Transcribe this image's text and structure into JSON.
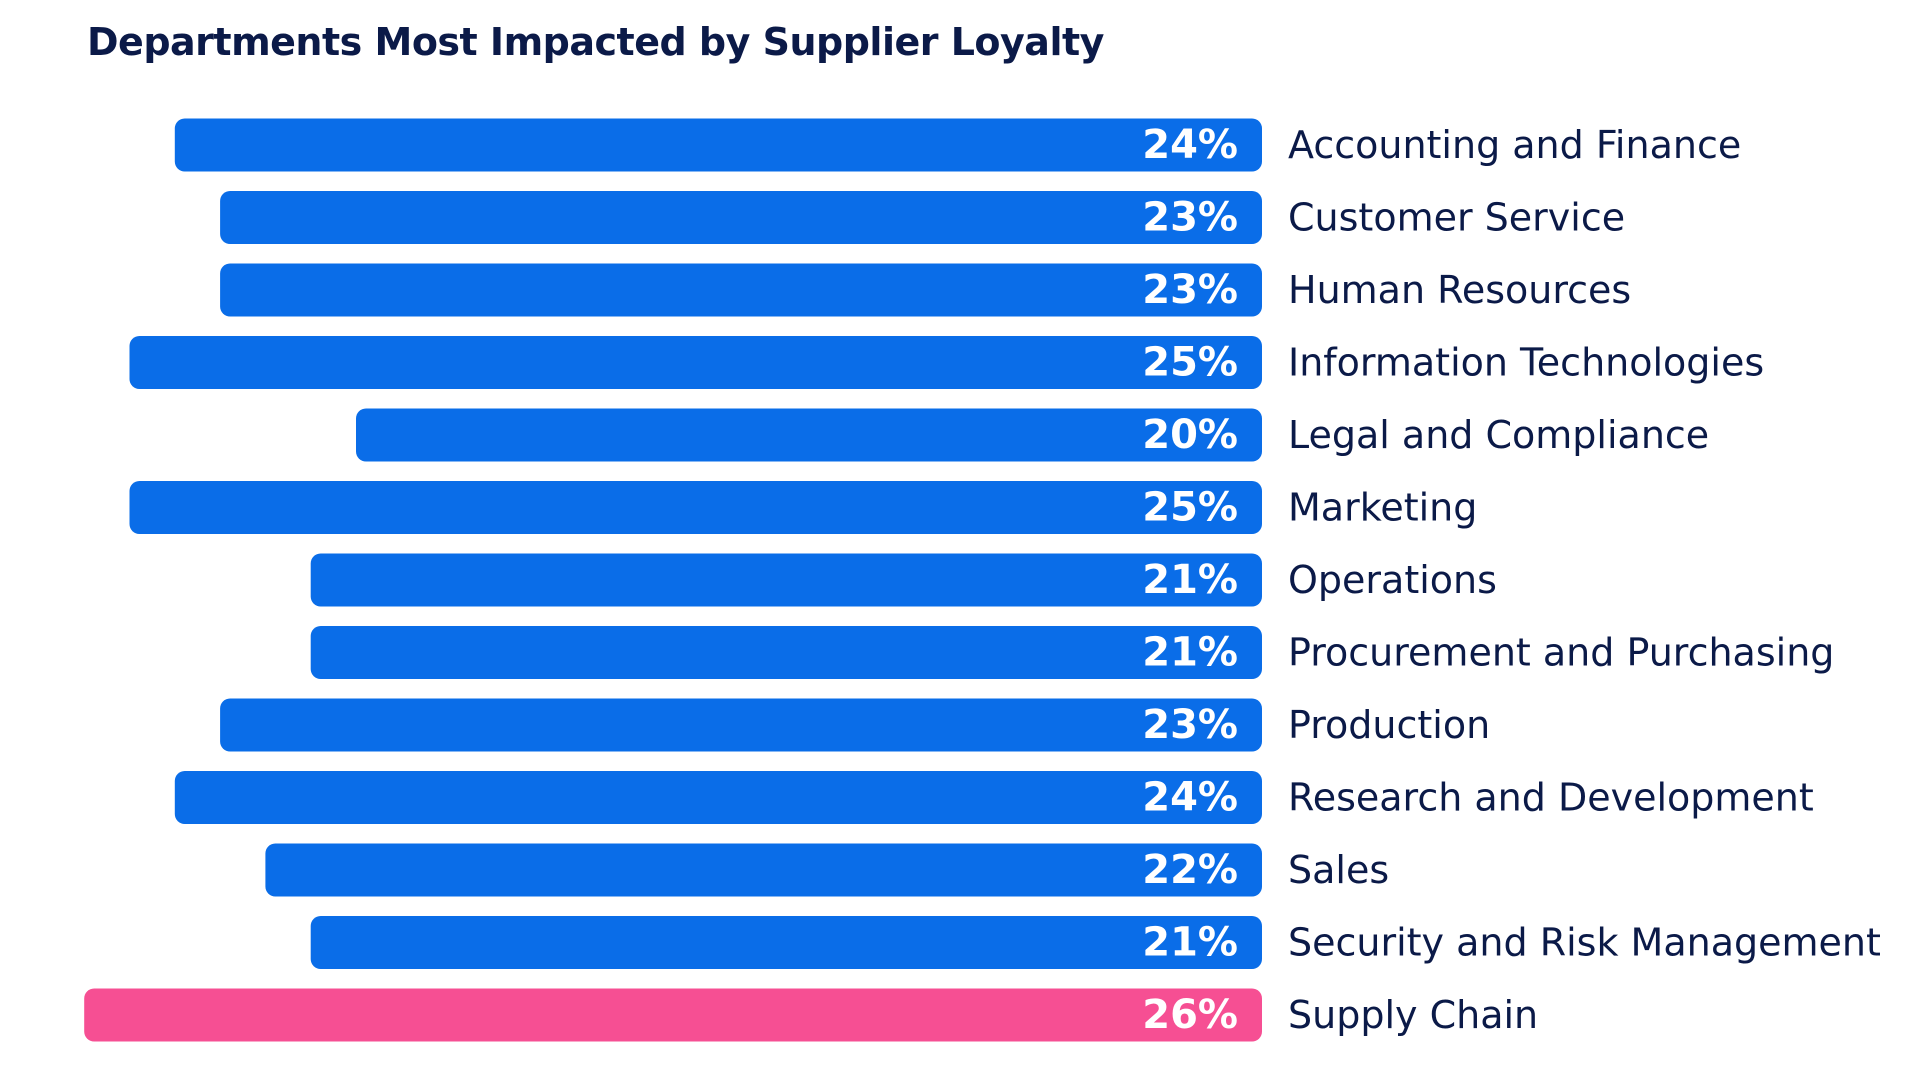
{
  "colors": {
    "default_bar": "#0a6de8",
    "highlight_bar": "#f64f93",
    "text": "#0b1a48",
    "bar_text": "#ffffff"
  },
  "chart_data": {
    "type": "bar",
    "orientation": "horizontal",
    "title": "Departments Most Impacted by Supplier Loyalty",
    "xlabel": "",
    "ylabel": "",
    "xlim": [
      0,
      26
    ],
    "grid": false,
    "legend": "none",
    "categories": [
      "Accounting and Finance",
      "Customer Service",
      "Human Resources",
      "Information Technologies",
      "Legal and Compliance",
      "Marketing",
      "Operations",
      "Procurement and Purchasing",
      "Production",
      "Research and Development",
      "Sales",
      "Security and Risk Management",
      "Supply Chain"
    ],
    "values": [
      24,
      23,
      23,
      25,
      20,
      25,
      21,
      21,
      23,
      24,
      22,
      21,
      26
    ],
    "value_labels": [
      "24%",
      "23%",
      "23%",
      "25%",
      "20%",
      "25%",
      "21%",
      "21%",
      "23%",
      "24%",
      "22%",
      "21%",
      "26%"
    ],
    "highlighted_category": "Supply Chain"
  }
}
